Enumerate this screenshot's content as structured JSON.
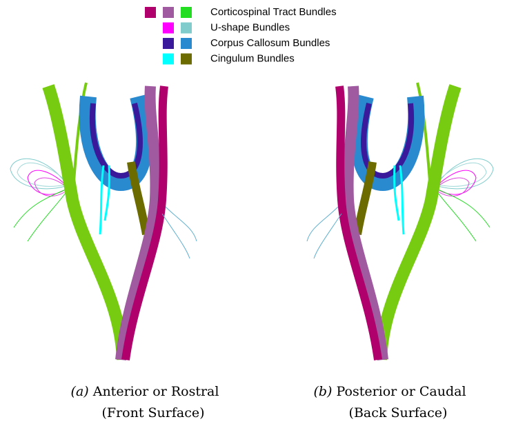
{
  "legend": {
    "items": [
      {
        "label": "Corticospinal Tract Bundles",
        "colors": [
          "#b0006b",
          "#a05aa0",
          "#22dd22"
        ]
      },
      {
        "label": "U-shape Bundles",
        "colors": [
          "#ff00ff",
          "#80cccc"
        ]
      },
      {
        "label": "Corpus Callosum Bundles",
        "colors": [
          "#3a1a9a",
          "#2a8ad0"
        ]
      },
      {
        "label": "Cingulum Bundles",
        "colors": [
          "#00ffff",
          "#6b6b00"
        ]
      }
    ]
  },
  "panels": [
    {
      "tag": "(a)",
      "caption": "Anterior or Rostral",
      "subcaption": "(Front Surface)"
    },
    {
      "tag": "(b)",
      "caption": "Posterior or Caudal",
      "subcaption": "(Back Surface)"
    }
  ]
}
